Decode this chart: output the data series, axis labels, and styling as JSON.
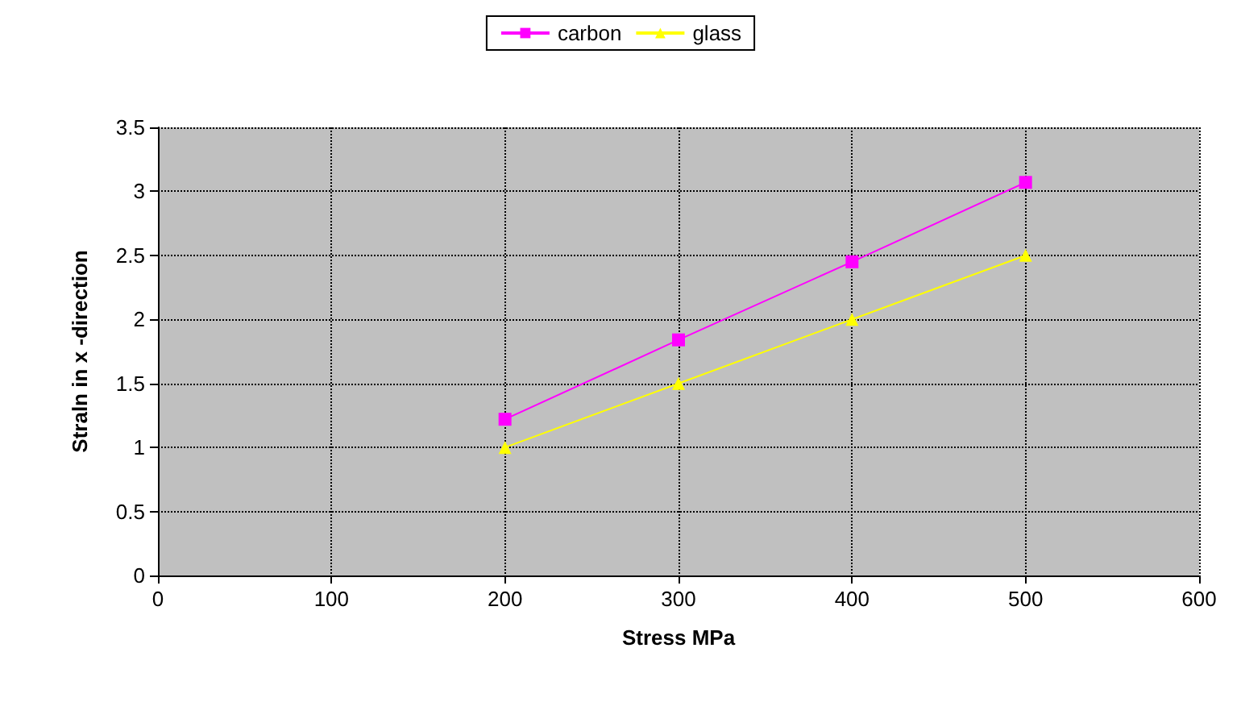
{
  "chart_data": {
    "type": "line",
    "xlabel": "Stress MPa",
    "ylabel": "Straln in x -direction",
    "x": [
      200,
      300,
      400,
      500
    ],
    "series": [
      {
        "name": "carbon",
        "color": "#ff00ff",
        "marker": "square",
        "values": [
          1.22,
          1.84,
          2.45,
          3.07
        ]
      },
      {
        "name": "glass",
        "color": "#ffff00",
        "marker": "triangle",
        "values": [
          1.0,
          1.5,
          2.0,
          2.5
        ]
      }
    ],
    "xlim": [
      0,
      600
    ],
    "xticks": [
      0,
      100,
      200,
      300,
      400,
      500,
      600
    ],
    "ylim": [
      0,
      3.5
    ],
    "yticks": [
      0,
      0.5,
      1,
      1.5,
      2,
      2.5,
      3,
      3.5
    ],
    "grid": true,
    "legend": "top",
    "line_style": "solid"
  }
}
